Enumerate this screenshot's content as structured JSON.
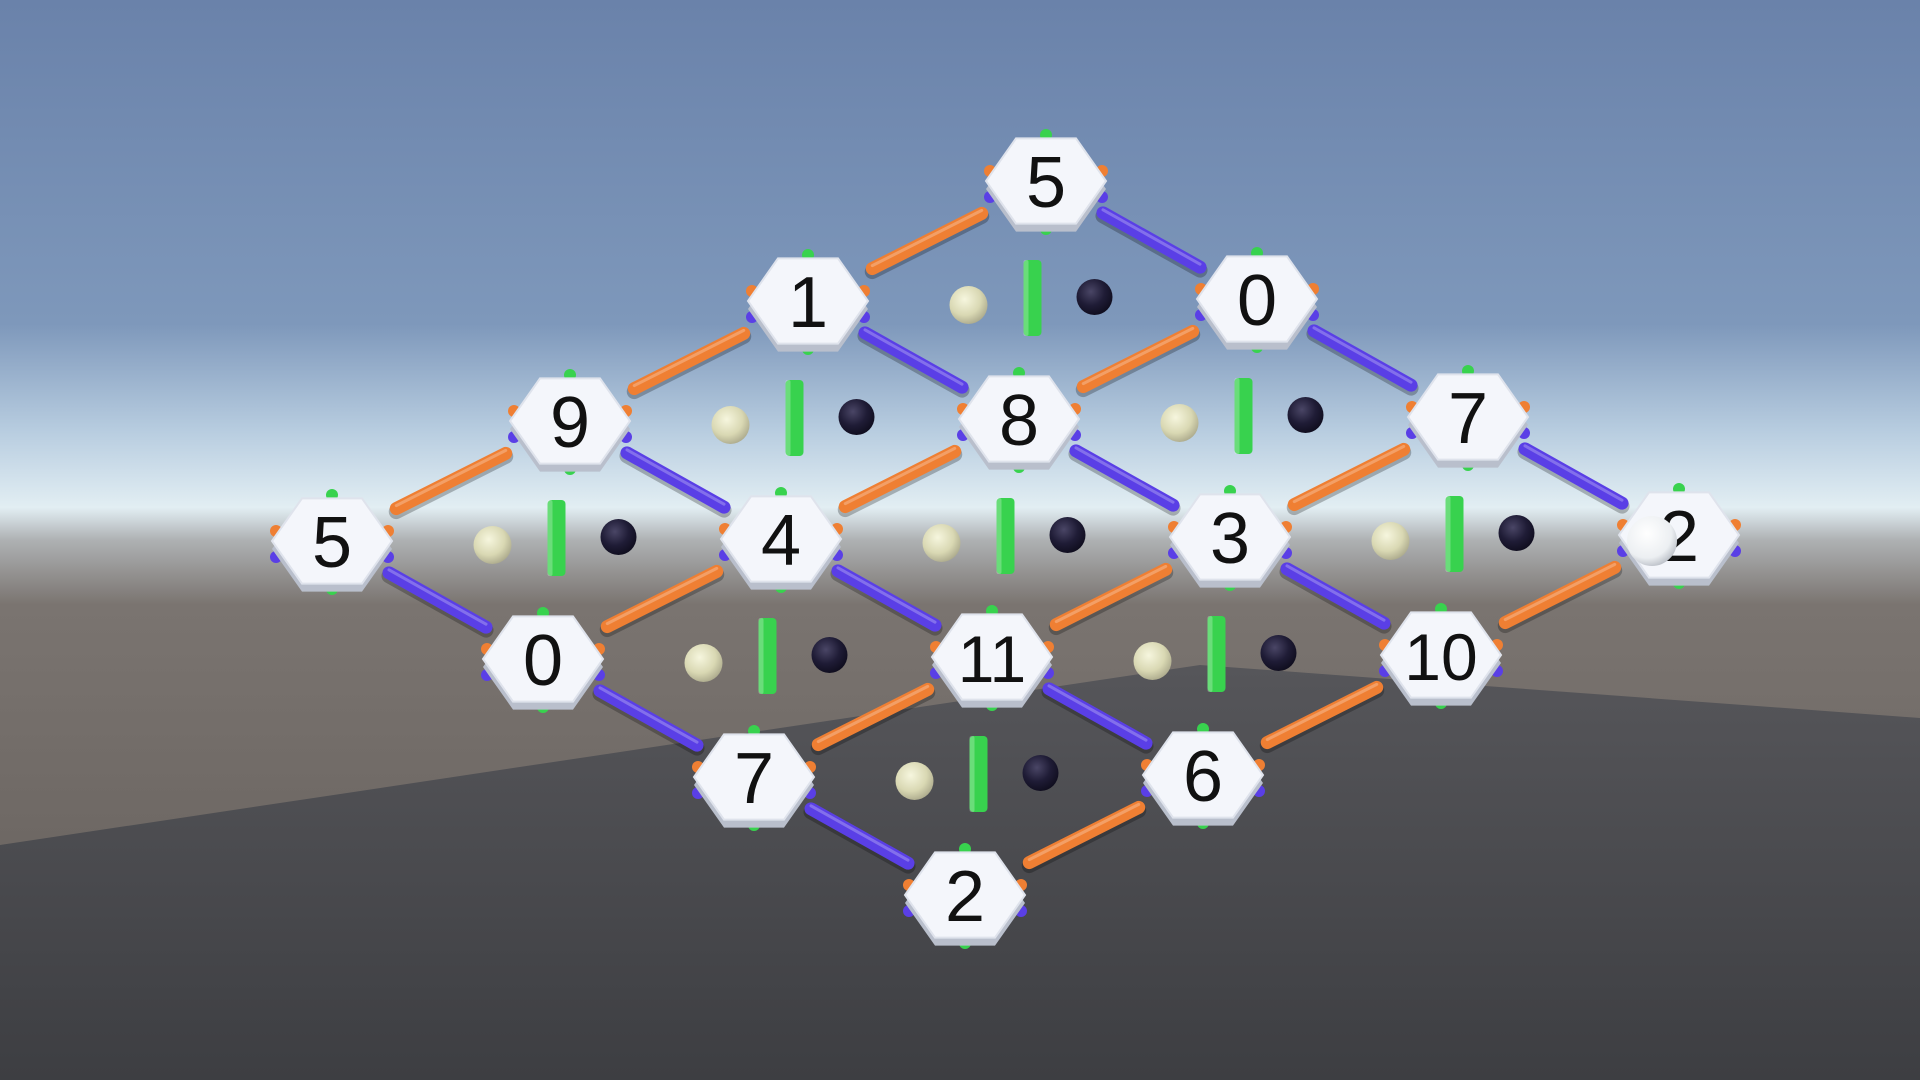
{
  "scene": {
    "colors": {
      "sky_top": "#6a84ad",
      "sky_horizon": "#dfecf2",
      "ground_far": "#6c6662",
      "ground_near": "#46474b",
      "edge_blue": "#5a3fe6",
      "edge_orange": "#ef7f33",
      "edge_green": "#38d24e",
      "tile_fill": "#f4f6fb",
      "tile_side": "#b9bfcc",
      "number_color": "#111111",
      "ball_light": "#ddddb8",
      "ball_dark": "#1d1b34",
      "cursor_ball": "#f4f4f4"
    },
    "tiles": [
      {
        "id": "r0c0",
        "label": "5"
      },
      {
        "id": "r0c1",
        "label": "1"
      },
      {
        "id": "r0c2",
        "label": "9"
      },
      {
        "id": "r0c3",
        "label": "5"
      },
      {
        "id": "r1c0",
        "label": "0"
      },
      {
        "id": "r1c1",
        "label": "8"
      },
      {
        "id": "r1c2",
        "label": "4"
      },
      {
        "id": "r1c3",
        "label": "0"
      },
      {
        "id": "r2c0",
        "label": "7"
      },
      {
        "id": "r2c1",
        "label": "3"
      },
      {
        "id": "r2c2",
        "label": "11"
      },
      {
        "id": "r2c3",
        "label": "7"
      },
      {
        "id": "r3c0",
        "label": "2"
      },
      {
        "id": "r3c1",
        "label": "10"
      },
      {
        "id": "r3c2",
        "label": "6"
      },
      {
        "id": "r3c3",
        "label": "2"
      }
    ],
    "cell_balls": [
      {
        "id": "cell-0-0",
        "light": true,
        "dark": true
      },
      {
        "id": "cell-0-1",
        "light": true,
        "dark": true
      },
      {
        "id": "cell-0-2",
        "light": true,
        "dark": true
      },
      {
        "id": "cell-1-0",
        "light": true,
        "dark": true
      },
      {
        "id": "cell-1-1",
        "light": true,
        "dark": true
      },
      {
        "id": "cell-1-2",
        "light": true,
        "dark": true
      },
      {
        "id": "cell-2-0",
        "light": true,
        "dark": true
      },
      {
        "id": "cell-2-1",
        "light": true,
        "dark": true
      },
      {
        "id": "cell-2-2",
        "light": true,
        "dark": true
      }
    ],
    "cursor_on_tile": "r3c0"
  }
}
